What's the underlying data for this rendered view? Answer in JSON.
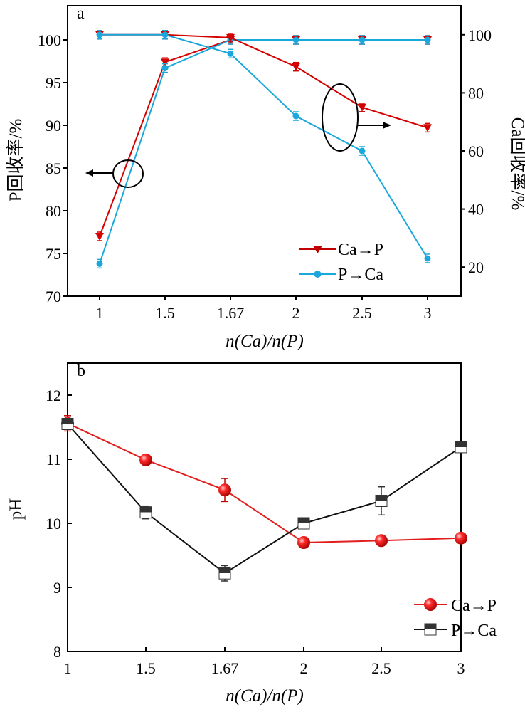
{
  "chart_data": [
    {
      "panel_label": "a",
      "type": "line",
      "categories": [
        "1",
        "1.5",
        "1.67",
        "2",
        "2.5",
        "3"
      ],
      "xlabel": "n(Ca)/n(P)",
      "ylabel": "P回收率/%",
      "y2label": "Ca回收率/%",
      "ylim": [
        70,
        104
      ],
      "yticks": [
        70,
        75,
        80,
        85,
        90,
        95,
        100
      ],
      "y2lim": [
        10,
        110
      ],
      "y2ticks": [
        20,
        40,
        60,
        80,
        100
      ],
      "grid": false,
      "legend_position": "bottom-right",
      "series": [
        {
          "name": "Ca→P",
          "axis": "left",
          "color": "#d40000",
          "marker": "triangle-down",
          "values": [
            77.0,
            97.4,
            100.0,
            100.0,
            100.0,
            100.0
          ]
        },
        {
          "name": "P→Ca",
          "axis": "left",
          "color": "#1aa7db",
          "marker": "circle",
          "values": [
            73.8,
            96.7,
            100.0,
            100.0,
            100.0,
            100.0
          ]
        },
        {
          "axis": "right",
          "color": "#d40000",
          "marker": "triangle-down",
          "values": [
            100.0,
            100.0,
            99.0,
            89.0,
            75.0,
            68.0
          ]
        },
        {
          "axis": "right",
          "color": "#1aa7db",
          "marker": "circle",
          "values": [
            100.0,
            100.0,
            93.5,
            72.0,
            60.0,
            23.0
          ]
        }
      ],
      "annotations": [
        "left-arrow-ellipse",
        "right-arrow-ellipse"
      ]
    },
    {
      "panel_label": "b",
      "type": "line",
      "categories": [
        "1",
        "1.5",
        "1.67",
        "2",
        "2.5",
        "3"
      ],
      "xlabel": "n(Ca)/n(P)",
      "ylabel": "pH",
      "ylim": [
        8,
        12.5
      ],
      "yticks": [
        8,
        9,
        10,
        11,
        12
      ],
      "grid": false,
      "legend_position": "bottom-right",
      "series": [
        {
          "name": "Ca→P",
          "color": "#e21d1d",
          "marker": "circle",
          "values": [
            11.56,
            10.99,
            10.52,
            9.7,
            9.73,
            9.77
          ],
          "errors": [
            0.12,
            0.05,
            0.18,
            0.03,
            0.03,
            0.03
          ]
        },
        {
          "name": "P→Ca",
          "color": "#111111",
          "marker": "square-half",
          "values": [
            11.55,
            10.17,
            9.22,
            10.0,
            10.35,
            11.19
          ],
          "errors": [
            0.05,
            0.1,
            0.12,
            0.05,
            0.22,
            0.05
          ]
        }
      ]
    }
  ]
}
